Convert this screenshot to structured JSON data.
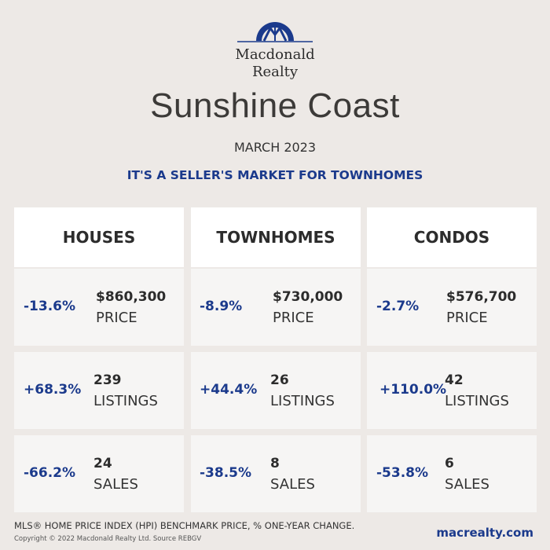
{
  "logo": {
    "line1": "Macdonald",
    "line2": "Realty"
  },
  "title": "Sunshine Coast",
  "date": "MARCH 2023",
  "headline": "IT'S A SELLER'S MARKET FOR TOWNHOMES",
  "columns": [
    {
      "heading": "HOUSES",
      "price": {
        "change": "-13.6%",
        "value": "$860,300",
        "label": "PRICE"
      },
      "listings": {
        "change": "+68.3%",
        "value": "239",
        "label": "LISTINGS"
      },
      "sales": {
        "change": "-66.2%",
        "value": "24",
        "label": "SALES"
      }
    },
    {
      "heading": "TOWNHOMES",
      "price": {
        "change": "-8.9%",
        "value": "$730,000",
        "label": "PRICE"
      },
      "listings": {
        "change": "+44.4%",
        "value": "26",
        "label": "LISTINGS"
      },
      "sales": {
        "change": "-38.5%",
        "value": "8",
        "label": "SALES"
      }
    },
    {
      "heading": "CONDOS",
      "price": {
        "change": "-2.7%",
        "value": "$576,700",
        "label": "PRICE"
      },
      "listings": {
        "change": "+110.0%",
        "value": "42",
        "label": "LISTINGS"
      },
      "sales": {
        "change": "-53.8%",
        "value": "6",
        "label": "SALES"
      }
    }
  ],
  "footer": {
    "note": "MLS® HOME PRICE INDEX (HPI) BENCHMARK PRICE, % ONE-YEAR CHANGE.",
    "copyright": "Copyright © 2022 Macdonald Realty Ltd. Source REBGV",
    "url": "macrealty.com"
  },
  "colors": {
    "accent": "#1b3a8c",
    "background": "#ede9e6"
  }
}
